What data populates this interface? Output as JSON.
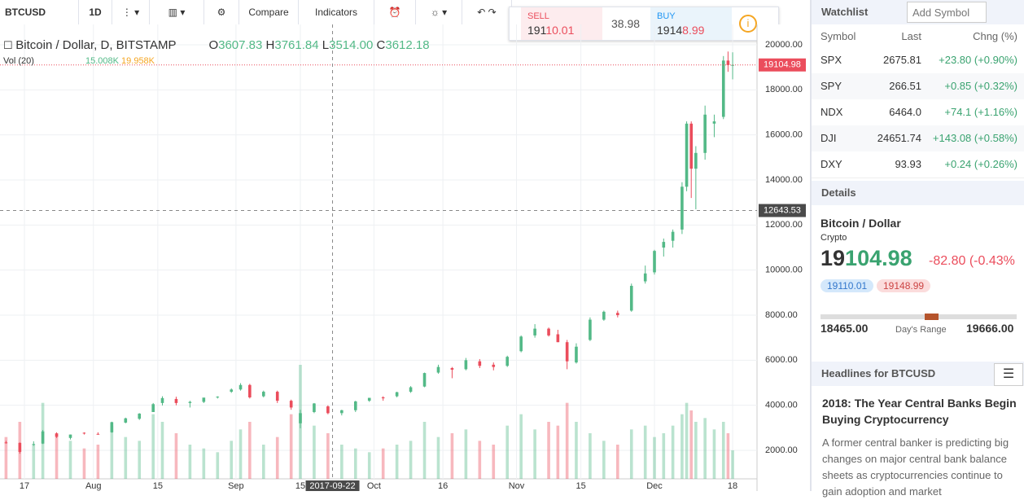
{
  "toolbar": {
    "symbol": "BTCUSD",
    "interval": "1D",
    "compare": "Compare",
    "indicators": "Indicators"
  },
  "trade": {
    "sell_label": "SELL",
    "sell_head": "191",
    "sell_tail": "10.01",
    "spread": "38.98",
    "buy_label": "BUY",
    "buy_head": "1914",
    "buy_tail": "8.99"
  },
  "legend": {
    "title": "Bitcoin / Dollar, D, BITSTAMP",
    "o_label": "O",
    "o": "3607.83",
    "h_label": "H",
    "h": "3761.84",
    "l_label": "L",
    "l": "3514.00",
    "c_label": "C",
    "c": "3612.18",
    "vol_label": "Vol (20)",
    "vol1": "15.008K",
    "vol2": "19.958K"
  },
  "chart_data": {
    "type": "candlestick",
    "xlim": [
      -5.31,
      159.3
    ],
    "ylim": [
      735,
      20903
    ],
    "xticks": [
      {
        "value": 0,
        "label": "17"
      },
      {
        "value": 15,
        "label": "Aug"
      },
      {
        "value": 29,
        "label": "15"
      },
      {
        "value": 46,
        "label": "Sep"
      },
      {
        "value": 60,
        "label": "15"
      },
      {
        "value": 76,
        "label": "Oct"
      },
      {
        "value": 91,
        "label": "16"
      },
      {
        "value": 107,
        "label": "Nov"
      },
      {
        "value": 121,
        "label": "15"
      },
      {
        "value": 137,
        "label": "Dec"
      },
      {
        "value": 154,
        "label": "18"
      }
    ],
    "yticks": [
      {
        "value": 2000,
        "label": "2000.00"
      },
      {
        "value": 4000,
        "label": "4000.00"
      },
      {
        "value": 6000,
        "label": "6000.00"
      },
      {
        "value": 8000,
        "label": "8000.00"
      },
      {
        "value": 10000,
        "label": "10000.00"
      },
      {
        "value": 12000,
        "label": "12000.00"
      },
      {
        "value": 14000,
        "label": "14000.00"
      },
      {
        "value": 16000,
        "label": "16000.00"
      },
      {
        "value": 18000,
        "label": "18000.00"
      },
      {
        "value": 20000,
        "label": "20000.00"
      }
    ],
    "up_color": "#53b987",
    "down_color": "#eb4d5c",
    "candles": {
      "x": [
        -4,
        -1,
        2,
        4,
        7,
        10,
        13,
        16,
        19,
        22,
        25,
        28,
        30,
        33,
        36,
        39,
        42,
        45,
        47,
        49,
        52,
        55,
        58,
        60,
        63,
        66,
        69,
        72,
        75,
        78,
        81,
        84,
        87,
        90,
        93,
        96,
        99,
        102,
        105,
        108,
        111,
        114,
        116,
        118,
        120,
        123,
        126,
        129,
        132,
        135,
        137,
        139,
        141,
        143,
        144,
        145,
        146,
        148,
        150,
        152,
        153,
        154
      ],
      "open": [
        2350,
        2330,
        2250,
        2300,
        2750,
        2550,
        2780,
        2730,
        2800,
        3230,
        3400,
        3700,
        4100,
        4280,
        4100,
        4150,
        4350,
        4600,
        4700,
        4900,
        4400,
        4600,
        4200,
        3200,
        3700,
        3950,
        3650,
        3780,
        4200,
        4350,
        4400,
        4600,
        4830,
        5450,
        5650,
        5600,
        5950,
        5800,
        5750,
        6400,
        7100,
        7400,
        7150,
        6800,
        5900,
        6900,
        7800,
        8100,
        8200,
        9500,
        9900,
        11000,
        11300,
        11800,
        13700,
        16500,
        14500,
        15200,
        16500,
        16800,
        19300,
        19100
      ],
      "high": [
        2420,
        2350,
        2400,
        2900,
        2800,
        2700,
        2800,
        2800,
        3270,
        3450,
        3650,
        4100,
        4400,
        4380,
        4200,
        4300,
        4400,
        4750,
        4980,
        4950,
        4650,
        4650,
        4250,
        3800,
        4100,
        4000,
        3800,
        4200,
        4300,
        4400,
        4600,
        4850,
        5450,
        5800,
        5700,
        6100,
        6050,
        5900,
        6200,
        7100,
        7600,
        7450,
        7350,
        6900,
        6750,
        7900,
        8200,
        8200,
        9400,
        10200,
        10900,
        11400,
        11800,
        13900,
        16600,
        16600,
        15500,
        17300,
        16900,
        19500,
        19700,
        19666
      ],
      "low": [
        2300,
        1850,
        2200,
        2280,
        2550,
        2480,
        2700,
        2700,
        2780,
        3200,
        3350,
        3700,
        3990,
        4000,
        3900,
        4100,
        4300,
        4550,
        4650,
        4300,
        4350,
        4100,
        3800,
        2980,
        3650,
        3600,
        3550,
        3700,
        4150,
        4200,
        4350,
        4550,
        4800,
        5400,
        5200,
        5550,
        5650,
        5550,
        5700,
        6350,
        7000,
        7050,
        6800,
        5600,
        5850,
        6850,
        7750,
        7900,
        8150,
        9400,
        9800,
        10600,
        11000,
        11600,
        13500,
        13200,
        12700,
        14900,
        15900,
        16700,
        18800,
        18465
      ],
      "close": [
        2330,
        1930,
        2280,
        2840,
        2600,
        2700,
        2750,
        2710,
        3250,
        3420,
        3630,
        4050,
        4320,
        4100,
        4150,
        4340,
        4380,
        4700,
        4900,
        4350,
        4600,
        4200,
        3900,
        3650,
        4080,
        3650,
        3780,
        4170,
        4330,
        4310,
        4580,
        4800,
        5430,
        5700,
        5580,
        6000,
        5750,
        5700,
        6150,
        7050,
        7400,
        7100,
        6800,
        5950,
        6600,
        7800,
        8150,
        8000,
        9300,
        9850,
        10850,
        11250,
        11700,
        13700,
        16500,
        14500,
        15200,
        16900,
        16600,
        19300,
        19100,
        19104.98
      ]
    },
    "volumes": [
      22,
      30,
      18,
      40,
      24,
      20,
      16,
      18,
      28,
      22,
      20,
      34,
      30,
      24,
      18,
      16,
      14,
      20,
      26,
      30,
      18,
      22,
      34,
      60,
      28,
      24,
      18,
      16,
      14,
      16,
      18,
      20,
      30,
      22,
      24,
      26,
      20,
      18,
      28,
      34,
      26,
      30,
      28,
      40,
      30,
      24,
      20,
      18,
      26,
      28,
      22,
      24,
      28,
      34,
      40,
      36,
      30,
      32,
      26,
      30,
      24,
      15
    ]
  },
  "crosshair": {
    "x": 67,
    "label": "2017-09-22",
    "price": {
      "value": 12643.53,
      "label": "12643.53"
    }
  },
  "last_price": {
    "value": 19104.98,
    "label": "19104.98"
  },
  "watchlist": {
    "title": "Watchlist",
    "add": "Add Symbol",
    "columns": [
      "Symbol",
      "Last",
      "Chng (%)"
    ],
    "rows": [
      [
        "SPX",
        "2675.81",
        "+23.80 (+0.90%)"
      ],
      [
        "SPY",
        "266.51",
        "+0.85 (+0.32%)"
      ],
      [
        "NDX",
        "6464.0",
        "+74.1 (+1.16%)"
      ],
      [
        "DJI",
        "24651.74",
        "+143.08 (+0.58%)"
      ],
      [
        "DXY",
        "93.93",
        "+0.24 (+0.26%)"
      ]
    ]
  },
  "details": {
    "title": "Details",
    "name": "Bitcoin / Dollar",
    "kind": "Crypto",
    "price_head": "19",
    "price_tail": "104.98",
    "change": "-82.80 (-0.43%",
    "bid": "19110.01",
    "ask": "19148.99",
    "low": "18465.00",
    "range_label": "Day's Range",
    "high": "19666.00"
  },
  "headlines": {
    "title": "Headlines for BTCUSD",
    "headline": "2018: The Year Central Banks Begin Buying Cryptocurrency",
    "body": "A former central banker is predicting big changes on major central bank balance sheets as cryptocurrencies continue to gain adoption and market"
  }
}
